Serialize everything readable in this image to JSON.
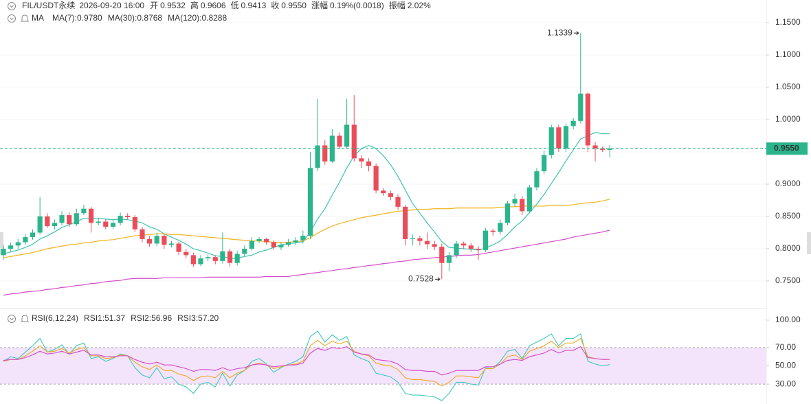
{
  "header": {
    "symbol": "FIL/USDT永续",
    "time": "2026-09-20 16:00",
    "fields": [
      {
        "label": "开",
        "value": "0.9532"
      },
      {
        "label": "高",
        "value": "0.9606"
      },
      {
        "label": "低",
        "value": "0.9413"
      },
      {
        "label": "收",
        "value": "0.9550"
      },
      {
        "label": "涨幅",
        "value": "0.19%(0.0018)"
      },
      {
        "label": "振幅",
        "value": "2.02%"
      }
    ]
  },
  "chart_data": [
    {
      "type": "candlestick",
      "indicator": "MA",
      "up_color": "#2bb58c",
      "down_color": "#ea4d5a",
      "open": [
        0.79,
        0.8,
        0.805,
        0.81,
        0.818,
        0.825,
        0.85,
        0.835,
        0.84,
        0.852,
        0.838,
        0.855,
        0.862,
        0.84,
        0.842,
        0.834,
        0.84,
        0.851,
        0.849,
        0.83,
        0.815,
        0.808,
        0.82,
        0.806,
        0.808,
        0.795,
        0.79,
        0.776,
        0.785,
        0.787,
        0.781,
        0.796,
        0.778,
        0.792,
        0.8,
        0.812,
        0.815,
        0.81,
        0.802,
        0.806,
        0.81,
        0.813,
        0.82,
        0.925,
        0.96,
        0.935,
        0.975,
        0.958,
        0.992,
        0.94,
        0.935,
        0.928,
        0.89,
        0.886,
        0.88,
        0.865,
        0.815,
        0.816,
        0.812,
        0.807,
        0.803,
        0.778,
        0.79,
        0.808,
        0.805,
        0.8,
        0.798,
        0.828,
        0.826,
        0.84,
        0.87,
        0.877,
        0.858,
        0.895,
        0.92,
        0.945,
        0.988,
        0.955,
        0.99,
        0.998,
        1.04,
        0.96,
        0.955,
        0.9532
      ],
      "high": [
        0.806,
        0.81,
        0.815,
        0.823,
        0.83,
        0.88,
        0.855,
        0.845,
        0.858,
        0.856,
        0.862,
        0.868,
        0.865,
        0.848,
        0.846,
        0.845,
        0.856,
        0.855,
        0.852,
        0.834,
        0.82,
        0.825,
        0.823,
        0.812,
        0.811,
        0.8,
        0.794,
        0.79,
        0.791,
        0.79,
        0.825,
        0.8,
        0.797,
        0.805,
        0.818,
        0.818,
        0.817,
        0.813,
        0.81,
        0.815,
        0.818,
        0.828,
        0.95,
        1.032,
        0.968,
        0.985,
        0.98,
        1.032,
        1.038,
        0.945,
        0.94,
        0.932,
        0.894,
        0.89,
        0.884,
        0.868,
        0.822,
        0.82,
        0.825,
        0.812,
        0.808,
        0.795,
        0.812,
        0.811,
        0.809,
        0.804,
        0.832,
        0.831,
        0.845,
        0.874,
        0.885,
        0.882,
        0.899,
        0.925,
        0.952,
        0.992,
        0.992,
        0.994,
        1.002,
        1.1339,
        1.042,
        0.965,
        0.958,
        0.9606
      ],
      "low": [
        0.783,
        0.795,
        0.8,
        0.806,
        0.814,
        0.822,
        0.832,
        0.83,
        0.836,
        0.834,
        0.835,
        0.852,
        0.825,
        0.836,
        0.83,
        0.83,
        0.836,
        0.845,
        0.826,
        0.81,
        0.803,
        0.804,
        0.8,
        0.802,
        0.79,
        0.785,
        0.772,
        0.773,
        0.781,
        0.776,
        0.777,
        0.772,
        0.774,
        0.788,
        0.797,
        0.809,
        0.806,
        0.798,
        0.798,
        0.803,
        0.806,
        0.808,
        0.815,
        0.92,
        0.93,
        0.933,
        0.955,
        0.955,
        0.935,
        0.925,
        0.92,
        0.886,
        0.882,
        0.875,
        0.86,
        0.805,
        0.805,
        0.805,
        0.8,
        0.798,
        0.7528,
        0.765,
        0.786,
        0.8,
        0.795,
        0.783,
        0.795,
        0.82,
        0.822,
        0.836,
        0.865,
        0.852,
        0.855,
        0.89,
        0.915,
        0.94,
        0.95,
        0.95,
        0.985,
        0.994,
        0.95,
        0.935,
        0.95,
        0.9413
      ],
      "close": [
        0.8,
        0.805,
        0.81,
        0.818,
        0.825,
        0.85,
        0.835,
        0.84,
        0.852,
        0.838,
        0.855,
        0.862,
        0.84,
        0.842,
        0.834,
        0.84,
        0.851,
        0.849,
        0.83,
        0.815,
        0.808,
        0.82,
        0.806,
        0.808,
        0.795,
        0.79,
        0.776,
        0.785,
        0.787,
        0.781,
        0.796,
        0.778,
        0.792,
        0.8,
        0.812,
        0.815,
        0.81,
        0.802,
        0.806,
        0.81,
        0.813,
        0.82,
        0.925,
        0.96,
        0.935,
        0.975,
        0.958,
        0.992,
        0.94,
        0.935,
        0.928,
        0.89,
        0.886,
        0.88,
        0.865,
        0.815,
        0.816,
        0.812,
        0.807,
        0.803,
        0.778,
        0.79,
        0.808,
        0.805,
        0.8,
        0.798,
        0.828,
        0.826,
        0.84,
        0.87,
        0.877,
        0.858,
        0.895,
        0.92,
        0.945,
        0.988,
        0.955,
        0.99,
        0.998,
        1.04,
        0.96,
        0.955,
        0.9532,
        0.955
      ],
      "series": [
        {
          "name": "MA(7):0.9780",
          "color": "#3cc3b0",
          "values": [
            0.792,
            0.795,
            0.798,
            0.802,
            0.807,
            0.815,
            0.82,
            0.826,
            0.833,
            0.837,
            0.842,
            0.847,
            0.846,
            0.847,
            0.846,
            0.845,
            0.846,
            0.845,
            0.843,
            0.84,
            0.834,
            0.83,
            0.823,
            0.818,
            0.813,
            0.807,
            0.8,
            0.797,
            0.793,
            0.789,
            0.788,
            0.785,
            0.785,
            0.788,
            0.79,
            0.795,
            0.798,
            0.802,
            0.806,
            0.808,
            0.809,
            0.811,
            0.826,
            0.846,
            0.862,
            0.883,
            0.903,
            0.925,
            0.944,
            0.955,
            0.96,
            0.955,
            0.944,
            0.93,
            0.912,
            0.891,
            0.87,
            0.855,
            0.84,
            0.826,
            0.811,
            0.802,
            0.801,
            0.8,
            0.799,
            0.798,
            0.801,
            0.806,
            0.812,
            0.822,
            0.834,
            0.843,
            0.856,
            0.869,
            0.884,
            0.901,
            0.918,
            0.936,
            0.953,
            0.97,
            0.975,
            0.98,
            0.978,
            0.978
          ]
        },
        {
          "name": "MA(30):0.8768",
          "color": "#f0b41c",
          "values": [
            0.786,
            0.788,
            0.79,
            0.792,
            0.794,
            0.797,
            0.8,
            0.802,
            0.804,
            0.806,
            0.807,
            0.809,
            0.81,
            0.812,
            0.813,
            0.814,
            0.816,
            0.818,
            0.82,
            0.821,
            0.822,
            0.823,
            0.823,
            0.822,
            0.822,
            0.821,
            0.82,
            0.819,
            0.818,
            0.817,
            0.816,
            0.815,
            0.814,
            0.813,
            0.812,
            0.812,
            0.811,
            0.81,
            0.81,
            0.81,
            0.811,
            0.812,
            0.817,
            0.824,
            0.83,
            0.835,
            0.839,
            0.842,
            0.845,
            0.848,
            0.85,
            0.852,
            0.854,
            0.856,
            0.858,
            0.859,
            0.86,
            0.861,
            0.861,
            0.862,
            0.862,
            0.862,
            0.863,
            0.863,
            0.863,
            0.863,
            0.863,
            0.863,
            0.864,
            0.865,
            0.865,
            0.866,
            0.866,
            0.866,
            0.866,
            0.867,
            0.867,
            0.867,
            0.868,
            0.87,
            0.871,
            0.872,
            0.874,
            0.8768
          ]
        },
        {
          "name": "MA(120):0.8288",
          "color": "#d447c9",
          "values": [
            0.728,
            0.73,
            0.731,
            0.733,
            0.734,
            0.735,
            0.737,
            0.738,
            0.74,
            0.741,
            0.743,
            0.744,
            0.746,
            0.747,
            0.749,
            0.75,
            0.751,
            0.753,
            0.754,
            0.754,
            0.754,
            0.754,
            0.755,
            0.755,
            0.755,
            0.755,
            0.755,
            0.755,
            0.756,
            0.756,
            0.756,
            0.756,
            0.756,
            0.756,
            0.756,
            0.756,
            0.757,
            0.757,
            0.757,
            0.757,
            0.759,
            0.76,
            0.762,
            0.763,
            0.765,
            0.766,
            0.768,
            0.769,
            0.771,
            0.772,
            0.774,
            0.775,
            0.777,
            0.778,
            0.78,
            0.781,
            0.783,
            0.784,
            0.785,
            0.786,
            0.787,
            0.788,
            0.789,
            0.79,
            0.79,
            0.791,
            0.793,
            0.795,
            0.797,
            0.799,
            0.801,
            0.803,
            0.805,
            0.807,
            0.809,
            0.811,
            0.813,
            0.815,
            0.818,
            0.82,
            0.822,
            0.824,
            0.826,
            0.8288
          ]
        }
      ],
      "ylim": [
        0.72,
        1.16
      ],
      "yticks": [
        {
          "value": 1.15,
          "label": "1.1500"
        },
        {
          "value": 1.1,
          "label": "1.1000"
        },
        {
          "value": 1.05,
          "label": "1.0500"
        },
        {
          "value": 1.0,
          "label": "1.0000"
        },
        {
          "value": 0.95,
          "label": "0.9500"
        },
        {
          "value": 0.9,
          "label": "0.9000"
        },
        {
          "value": 0.85,
          "label": "0.8500"
        },
        {
          "value": 0.8,
          "label": "0.8000"
        },
        {
          "value": 0.75,
          "label": "0.7500"
        }
      ],
      "last_price_label": "0.9550",
      "grid": true
    },
    {
      "type": "line",
      "title": "RSI(6,12,24)",
      "series": [
        {
          "name": "RSI1:51.37",
          "color": "#3cc9c0",
          "values": [
            55,
            60,
            58,
            65,
            72,
            80,
            65,
            68,
            73,
            63,
            72,
            75,
            58,
            60,
            55,
            58,
            63,
            61,
            48,
            40,
            37,
            48,
            36,
            38,
            30,
            27,
            20,
            30,
            32,
            27,
            42,
            28,
            40,
            45,
            55,
            58,
            52,
            43,
            48,
            52,
            55,
            60,
            82,
            88,
            76,
            84,
            78,
            82,
            62,
            58,
            55,
            42,
            40,
            38,
            32,
            20,
            18,
            18,
            17,
            16,
            12,
            20,
            32,
            32,
            30,
            29,
            48,
            47,
            55,
            66,
            68,
            58,
            72,
            76,
            80,
            85,
            72,
            80,
            80,
            85,
            55,
            52,
            50,
            51.37
          ]
        },
        {
          "name": "RSI2:56.96",
          "color": "#f0a81c",
          "values": [
            55,
            57,
            57,
            61,
            66,
            72,
            65,
            66,
            69,
            64,
            68,
            70,
            61,
            61,
            58,
            59,
            62,
            61,
            54,
            49,
            46,
            51,
            45,
            45,
            41,
            39,
            34,
            38,
            39,
            37,
            44,
            37,
            42,
            45,
            51,
            53,
            51,
            47,
            49,
            51,
            52,
            55,
            72,
            78,
            72,
            77,
            74,
            77,
            66,
            63,
            61,
            53,
            51,
            50,
            46,
            37,
            35,
            35,
            34,
            33,
            28,
            32,
            39,
            39,
            38,
            37,
            47,
            47,
            52,
            60,
            62,
            57,
            66,
            69,
            72,
            77,
            70,
            75,
            75,
            80,
            60,
            58,
            57,
            56.96
          ]
        },
        {
          "name": "RSI3:57.20",
          "color": "#d447c9",
          "values": [
            56,
            57,
            57,
            59,
            62,
            66,
            63,
            64,
            66,
            63,
            65,
            67,
            62,
            62,
            60,
            60,
            61,
            61,
            57,
            54,
            52,
            54,
            51,
            51,
            49,
            47,
            44,
            46,
            46,
            45,
            48,
            45,
            47,
            48,
            51,
            52,
            51,
            49,
            50,
            51,
            51,
            53,
            64,
            69,
            67,
            70,
            69,
            71,
            65,
            63,
            62,
            57,
            56,
            55,
            52,
            46,
            45,
            45,
            44,
            44,
            40,
            42,
            45,
            45,
            45,
            45,
            49,
            49,
            52,
            56,
            57,
            56,
            60,
            62,
            64,
            68,
            64,
            67,
            67,
            71,
            59,
            58,
            57,
            57.2
          ]
        }
      ],
      "ylim": [
        10,
        105
      ],
      "yticks": [
        {
          "value": 100,
          "label": "100.00"
        },
        {
          "value": 70,
          "label": "70.00"
        },
        {
          "value": 50,
          "label": "50.00"
        },
        {
          "value": 30,
          "label": "30.00"
        }
      ],
      "band": [
        30,
        70
      ]
    }
  ]
}
